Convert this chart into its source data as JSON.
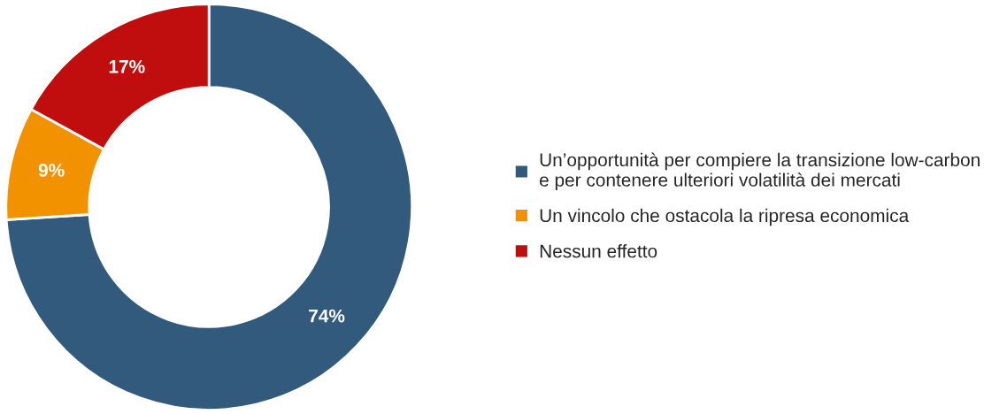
{
  "chart_data": {
    "type": "donut",
    "categories": [
      "Un’opportunità per compiere la transizione low-carbon\ne per contenere ulteriori volatilità dei mercati",
      "Un vincolo che ostacola la ripresa economica",
      "Nessun effetto"
    ],
    "values": [
      74,
      9,
      17
    ],
    "colors": [
      "#325a7c",
      "#f39200",
      "#c00d0d"
    ],
    "value_labels": [
      "74%",
      "9%",
      "17%"
    ],
    "legend": "right"
  }
}
